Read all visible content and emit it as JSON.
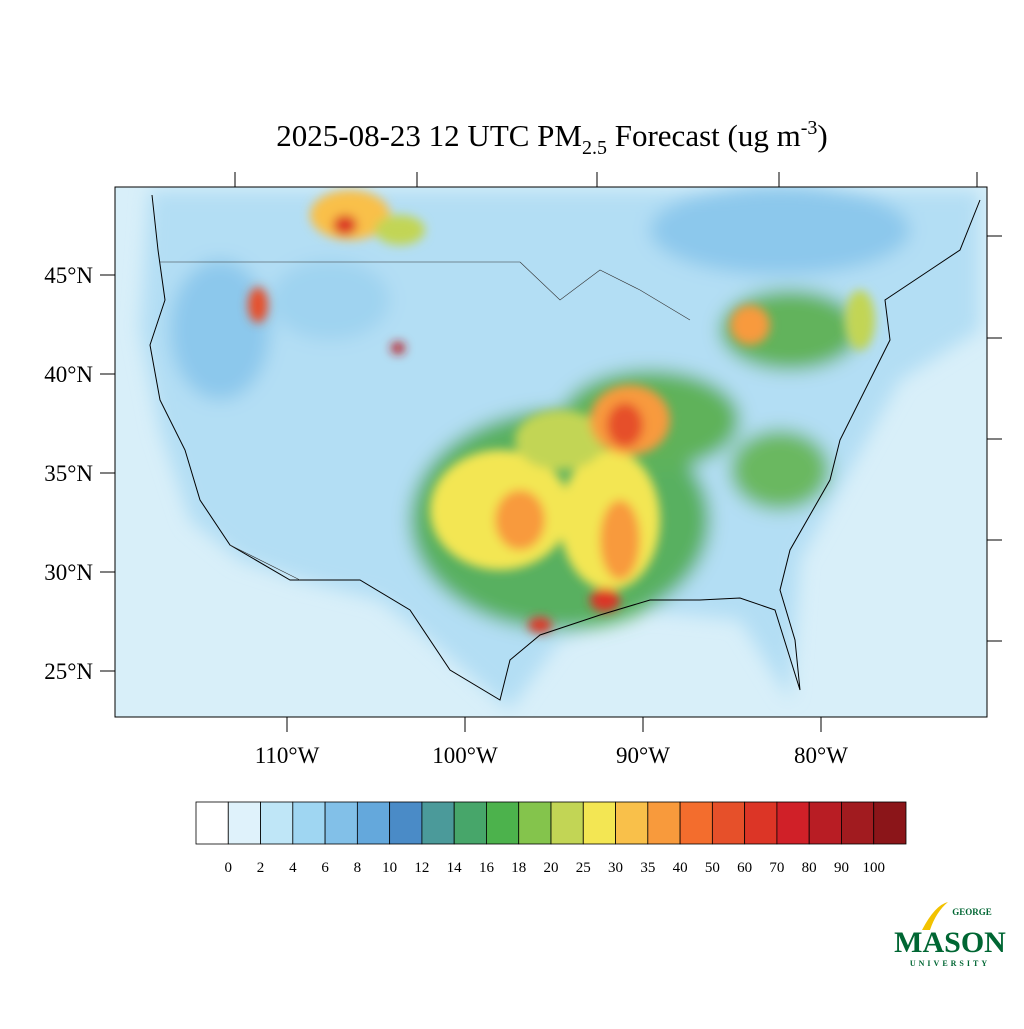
{
  "header": {
    "title_main": "2025-08-23 12 UTC PM",
    "title_sub": "2.5",
    "title_mid": " Forecast (ug m",
    "title_sup": "-3",
    "title_end": ")"
  },
  "map": {
    "lat_labels": [
      "45°N",
      "40°N",
      "35°N",
      "30°N",
      "25°N"
    ],
    "lon_labels": [
      "110°W",
      "100°W",
      "90°W",
      "80°W"
    ]
  },
  "colorbar": {
    "levels": [
      0,
      2,
      4,
      6,
      8,
      10,
      12,
      14,
      16,
      18,
      20,
      25,
      30,
      35,
      40,
      50,
      60,
      70,
      80,
      90,
      100
    ],
    "colors": [
      "#ffffff",
      "#dff2fb",
      "#bfe6f7",
      "#9fd6f2",
      "#82c0e8",
      "#64a8dc",
      "#4a8bc7",
      "#4b9a9a",
      "#47a66a",
      "#4cb24c",
      "#84c44c",
      "#c2d555",
      "#f3e653",
      "#f9c04a",
      "#f89a3c",
      "#f36d2d",
      "#e6502a",
      "#dc3526",
      "#d02028",
      "#b81d24",
      "#a11b1f",
      "#8b1519"
    ]
  },
  "logo": {
    "top": "GEORGE",
    "name": "MASON",
    "bottom": "UNIVERSITY"
  }
}
